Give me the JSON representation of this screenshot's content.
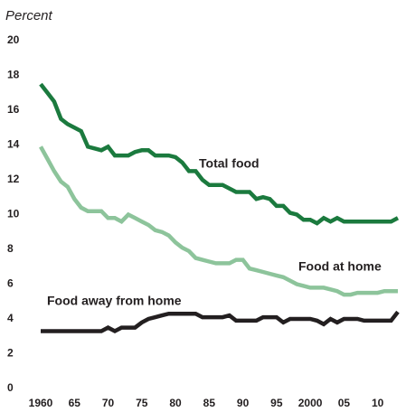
{
  "chart_data": {
    "type": "line",
    "y_label": "Percent",
    "x": [
      1960,
      1961,
      1962,
      1963,
      1964,
      1965,
      1966,
      1967,
      1968,
      1969,
      1970,
      1971,
      1972,
      1973,
      1974,
      1975,
      1976,
      1977,
      1978,
      1979,
      1980,
      1981,
      1982,
      1983,
      1984,
      1985,
      1986,
      1987,
      1988,
      1989,
      1990,
      1991,
      1992,
      1993,
      1994,
      1995,
      1996,
      1997,
      1998,
      1999,
      2000,
      2001,
      2002,
      2003,
      2004,
      2005,
      2006,
      2007,
      2008,
      2009,
      2010,
      2011,
      2012,
      2013
    ],
    "series": [
      {
        "name": "Total food",
        "color": "#1b7a3e",
        "values": [
          17.5,
          17.0,
          16.5,
          15.5,
          15.2,
          15.0,
          14.8,
          13.9,
          13.8,
          13.7,
          13.9,
          13.4,
          13.4,
          13.4,
          13.6,
          13.7,
          13.7,
          13.4,
          13.4,
          13.4,
          13.3,
          13.0,
          12.5,
          12.5,
          12.0,
          11.7,
          11.7,
          11.7,
          11.5,
          11.3,
          11.3,
          11.3,
          10.9,
          11.0,
          10.9,
          10.5,
          10.5,
          10.1,
          10.0,
          9.7,
          9.7,
          9.5,
          9.8,
          9.6,
          9.8,
          9.6,
          9.6,
          9.6,
          9.6,
          9.6,
          9.6,
          9.6,
          9.6,
          9.8
        ]
      },
      {
        "name": "Food at home",
        "color": "#8dc49b",
        "values": [
          13.9,
          13.2,
          12.5,
          11.9,
          11.6,
          10.9,
          10.4,
          10.2,
          10.2,
          10.2,
          9.8,
          9.8,
          9.6,
          10.0,
          9.8,
          9.6,
          9.4,
          9.1,
          9.0,
          8.8,
          8.4,
          8.1,
          7.9,
          7.5,
          7.4,
          7.3,
          7.2,
          7.2,
          7.2,
          7.4,
          7.4,
          6.9,
          6.8,
          6.7,
          6.6,
          6.5,
          6.4,
          6.2,
          6.0,
          5.9,
          5.8,
          5.8,
          5.8,
          5.7,
          5.6,
          5.4,
          5.4,
          5.5,
          5.5,
          5.5,
          5.5,
          5.6,
          5.6,
          5.6
        ]
      },
      {
        "name": "Food away from home",
        "color": "#231f20",
        "values": [
          3.3,
          3.3,
          3.3,
          3.3,
          3.3,
          3.3,
          3.3,
          3.3,
          3.3,
          3.3,
          3.5,
          3.3,
          3.5,
          3.5,
          3.5,
          3.8,
          4.0,
          4.1,
          4.2,
          4.3,
          4.3,
          4.3,
          4.3,
          4.3,
          4.1,
          4.1,
          4.1,
          4.1,
          4.2,
          3.9,
          3.9,
          3.9,
          3.9,
          4.1,
          4.1,
          4.1,
          3.8,
          4.0,
          4.0,
          4.0,
          4.0,
          3.9,
          3.7,
          4.0,
          3.8,
          4.0,
          4.0,
          4.0,
          3.9,
          3.9,
          3.9,
          3.9,
          3.9,
          4.4
        ]
      }
    ],
    "xlim": [
      1960,
      2013
    ],
    "xticks": [
      1960,
      {
        "value": 1965,
        "label": "65"
      },
      {
        "value": 1970,
        "label": "70"
      },
      {
        "value": 1975,
        "label": "75"
      },
      {
        "value": 1980,
        "label": "80"
      },
      {
        "value": 1985,
        "label": "85"
      },
      {
        "value": 1990,
        "label": "90"
      },
      {
        "value": 1995,
        "label": "95"
      },
      2000,
      {
        "value": 2005,
        "label": "05"
      },
      {
        "value": 2010,
        "label": "10"
      }
    ],
    "ylim": [
      0,
      20
    ],
    "yticks": [
      0,
      2,
      4,
      6,
      8,
      10,
      12,
      14,
      16,
      18,
      20
    ],
    "grid": false
  }
}
